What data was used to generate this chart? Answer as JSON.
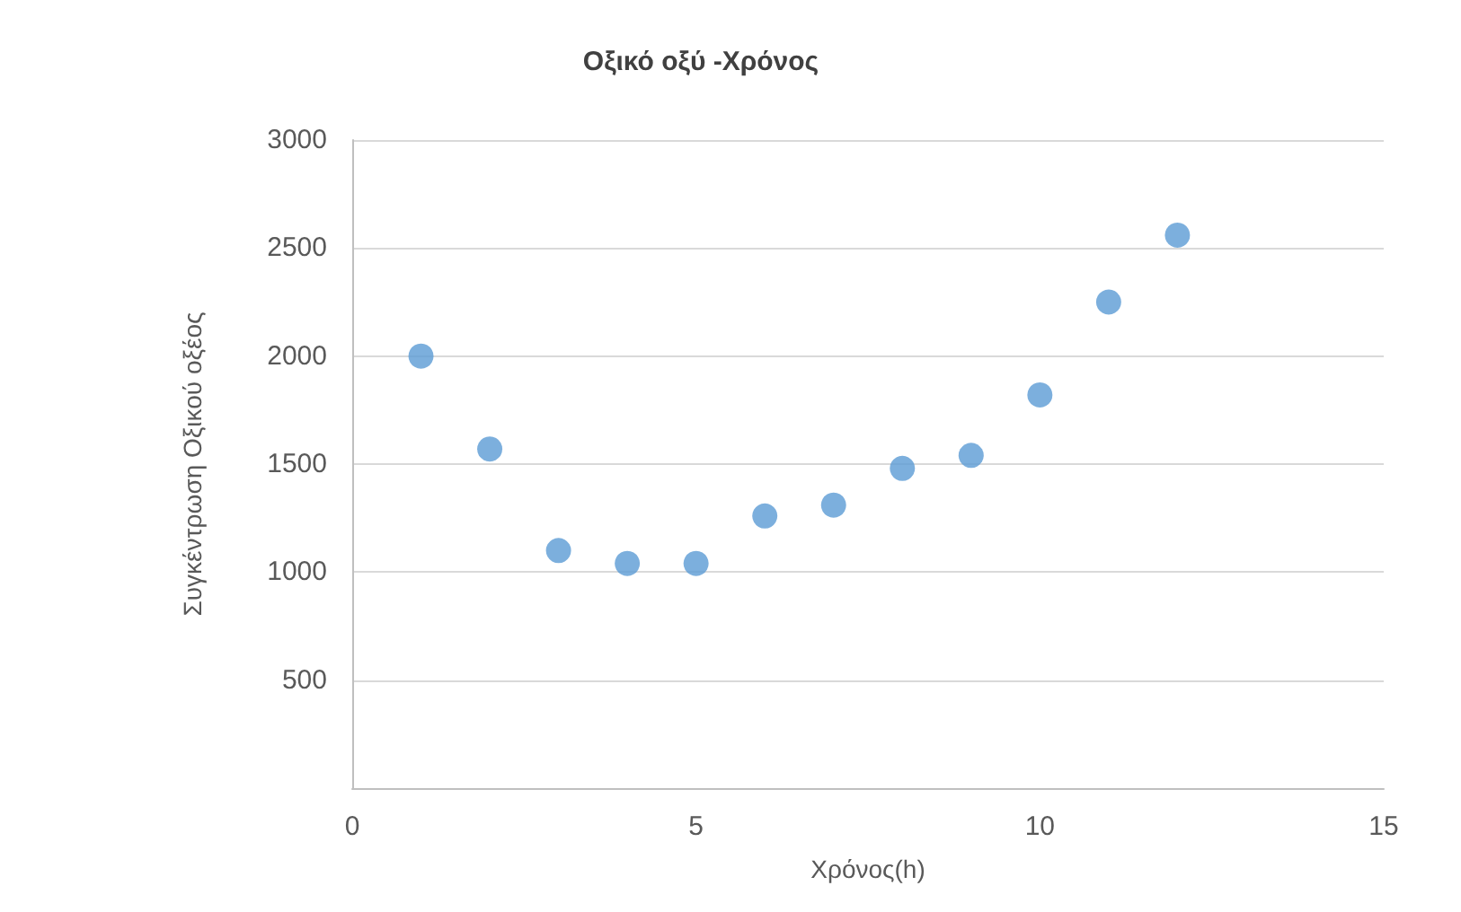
{
  "chart_data": {
    "type": "scatter",
    "title": "Οξικό οξύ -Χρόνος",
    "xlabel": "Χρόνος(h)",
    "ylabel": "Συγκέντρωση Οξικού οξέος",
    "x": [
      1,
      2,
      3,
      4,
      5,
      6,
      7,
      8,
      9,
      10,
      11,
      12
    ],
    "series": [
      {
        "color": "#5b9bd5",
        "values": [
          2000,
          1570,
          1100,
          1040,
          1040,
          1260,
          1310,
          1480,
          1540,
          1820,
          2250,
          2560
        ]
      }
    ],
    "xlim": [
      0,
      15
    ],
    "xticks": [
      0,
      5,
      10,
      15
    ],
    "ylim": [
      0,
      3000
    ],
    "yticks": [
      {
        "value": 0,
        "label": null
      },
      500,
      1000,
      1500,
      2000,
      2500,
      3000
    ],
    "grid": "y",
    "marker": "circle"
  }
}
